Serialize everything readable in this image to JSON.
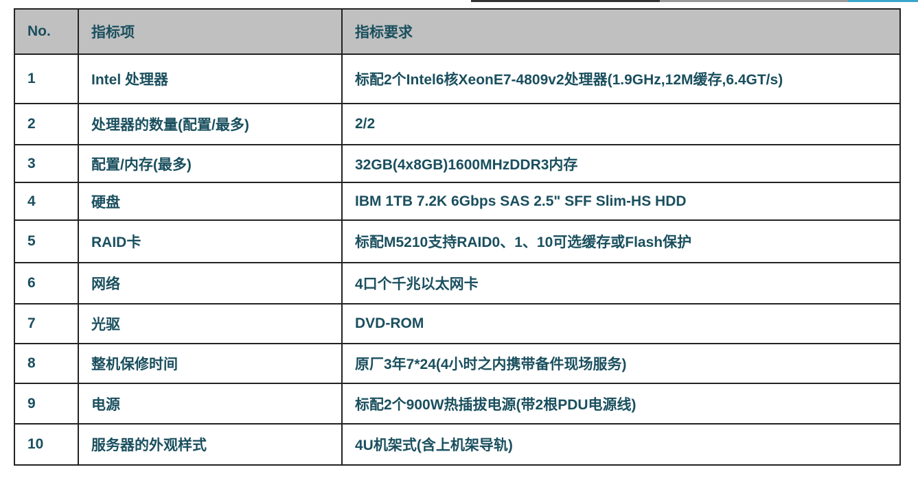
{
  "colors": {
    "text": "#1a4f5e",
    "header_bg": "#c0c0c0",
    "accent": "#3aa6c9"
  },
  "table": {
    "headers": [
      "No.",
      "指标项",
      "指标要求"
    ],
    "rows": [
      {
        "no": "1",
        "item": "Intel 处理器",
        "req": "标配2个Intel6核XeonE7-4809v2处理器(1.9GHz,12M缓存,6.4GT/s)"
      },
      {
        "no": "2",
        "item": "处理器的数量(配置/最多)",
        "req": "2/2"
      },
      {
        "no": "3",
        "item": "配置/内存(最多)",
        "req": "32GB(4x8GB)1600MHzDDR3内存"
      },
      {
        "no": "4",
        "item": "硬盘",
        "req": "IBM 1TB 7.2K 6Gbps SAS 2.5\" SFF Slim-HS  HDD"
      },
      {
        "no": "5",
        "item": "RAID卡",
        "req": "标配M5210支持RAID0、1、10可选缓存或Flash保护"
      },
      {
        "no": "6",
        "item": "网络",
        "req": "4口个千兆以太网卡"
      },
      {
        "no": "7",
        "item": "光驱",
        "req": "DVD-ROM"
      },
      {
        "no": "8",
        "item": "整机保修时间",
        "req": "原厂3年7*24(4小时之内携带备件现场服务)"
      },
      {
        "no": "9",
        "item": "电源",
        "req": "标配2个900W热插拔电源(带2根PDU电源线)"
      },
      {
        "no": "10",
        "item": "服务器的外观样式",
        "req": "4U机架式(含上机架导轨)"
      }
    ]
  }
}
